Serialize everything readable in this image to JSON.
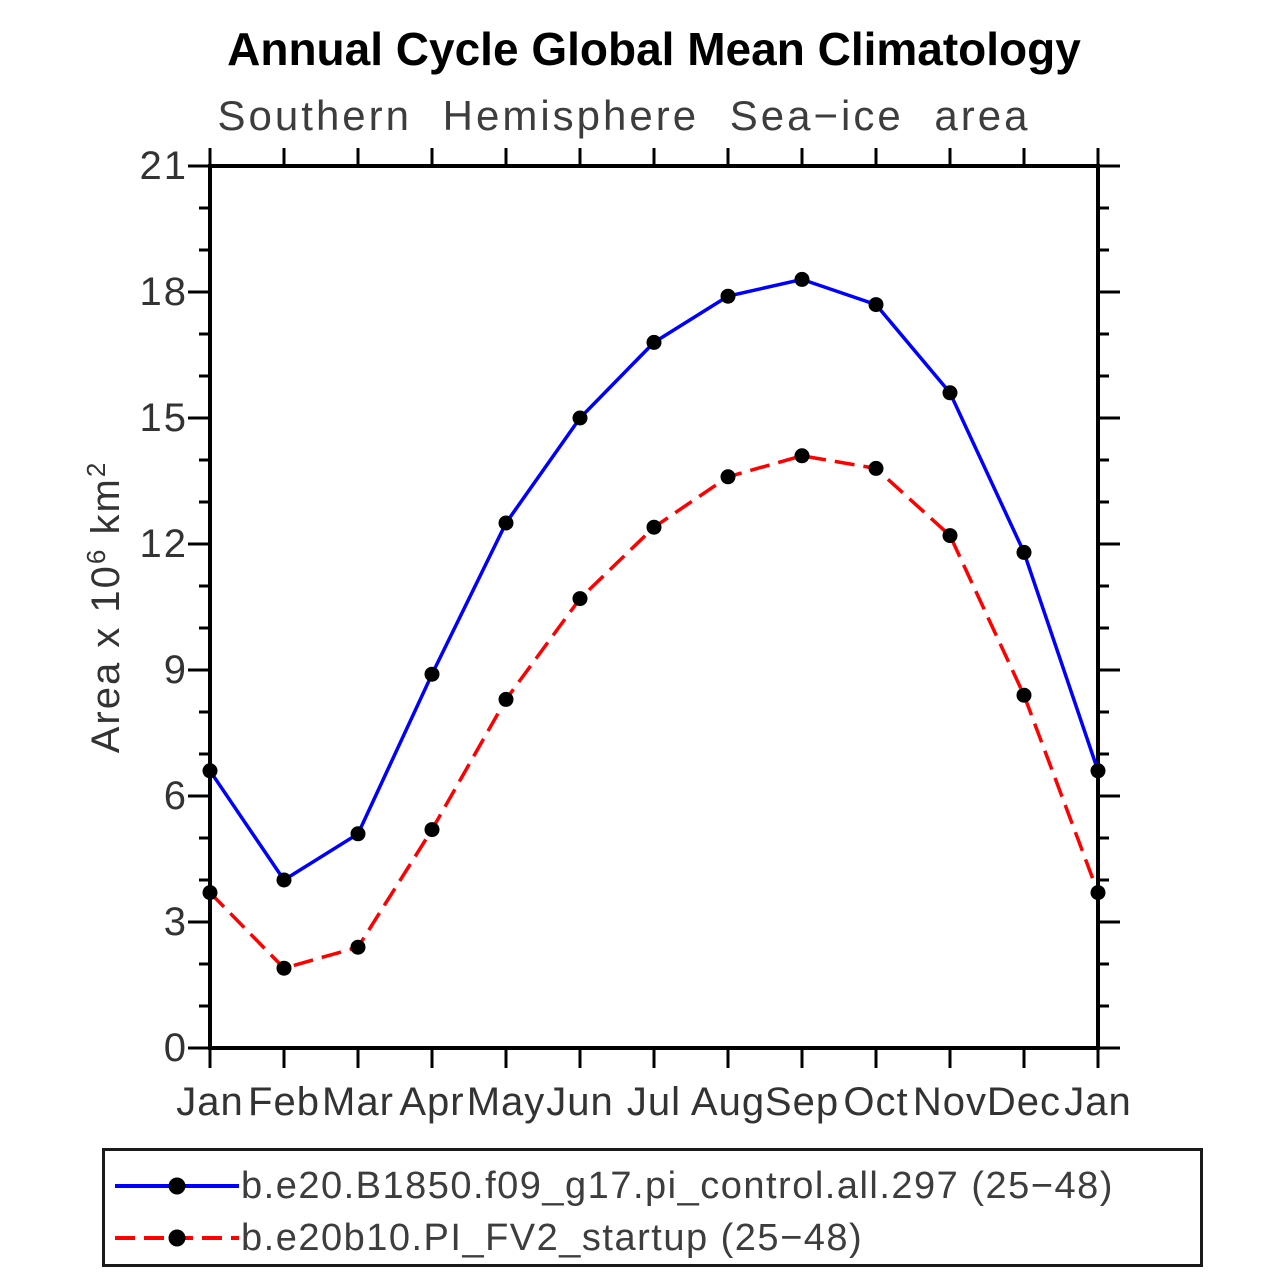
{
  "chart_data": {
    "type": "line",
    "title": "Annual Cycle Global Mean Climatology",
    "subtitle": "Southern Hemisphere Sea−ice area",
    "categories": [
      "Jan",
      "Feb",
      "Mar",
      "Apr",
      "May",
      "Jun",
      "Jul",
      "Aug",
      "Sep",
      "Oct",
      "Nov",
      "Dec",
      "Jan"
    ],
    "series": [
      {
        "name": "b.e20.B1850.f09_g17.pi_control.all.297 (25−48)",
        "color": "#0000ff",
        "style": "solid",
        "marker": "filled-circle",
        "values": [
          6.6,
          4.0,
          5.1,
          8.9,
          12.5,
          15.0,
          16.8,
          17.9,
          18.3,
          17.7,
          15.6,
          11.8,
          6.6
        ]
      },
      {
        "name": "b.e20b10.PI_FV2_startup (25−48)",
        "color": "#ff0000",
        "style": "dashed",
        "marker": "filled-circle",
        "values": [
          3.7,
          1.9,
          2.4,
          5.2,
          8.3,
          10.7,
          12.4,
          13.6,
          14.1,
          13.8,
          12.2,
          8.4,
          3.7
        ]
      }
    ],
    "ylabel_parts": {
      "prefix": "Area x 10",
      "sup1": "6",
      "mid": " km",
      "sup2": "2"
    },
    "xlabel": "",
    "ylim": [
      0,
      21
    ],
    "ytick_major": [
      0,
      3,
      6,
      9,
      12,
      15,
      18,
      21
    ],
    "ytick_minor_step": 1,
    "marker_color": "#000000",
    "axis_color": "#000000",
    "grid": "off",
    "legend_position": "bottom"
  }
}
